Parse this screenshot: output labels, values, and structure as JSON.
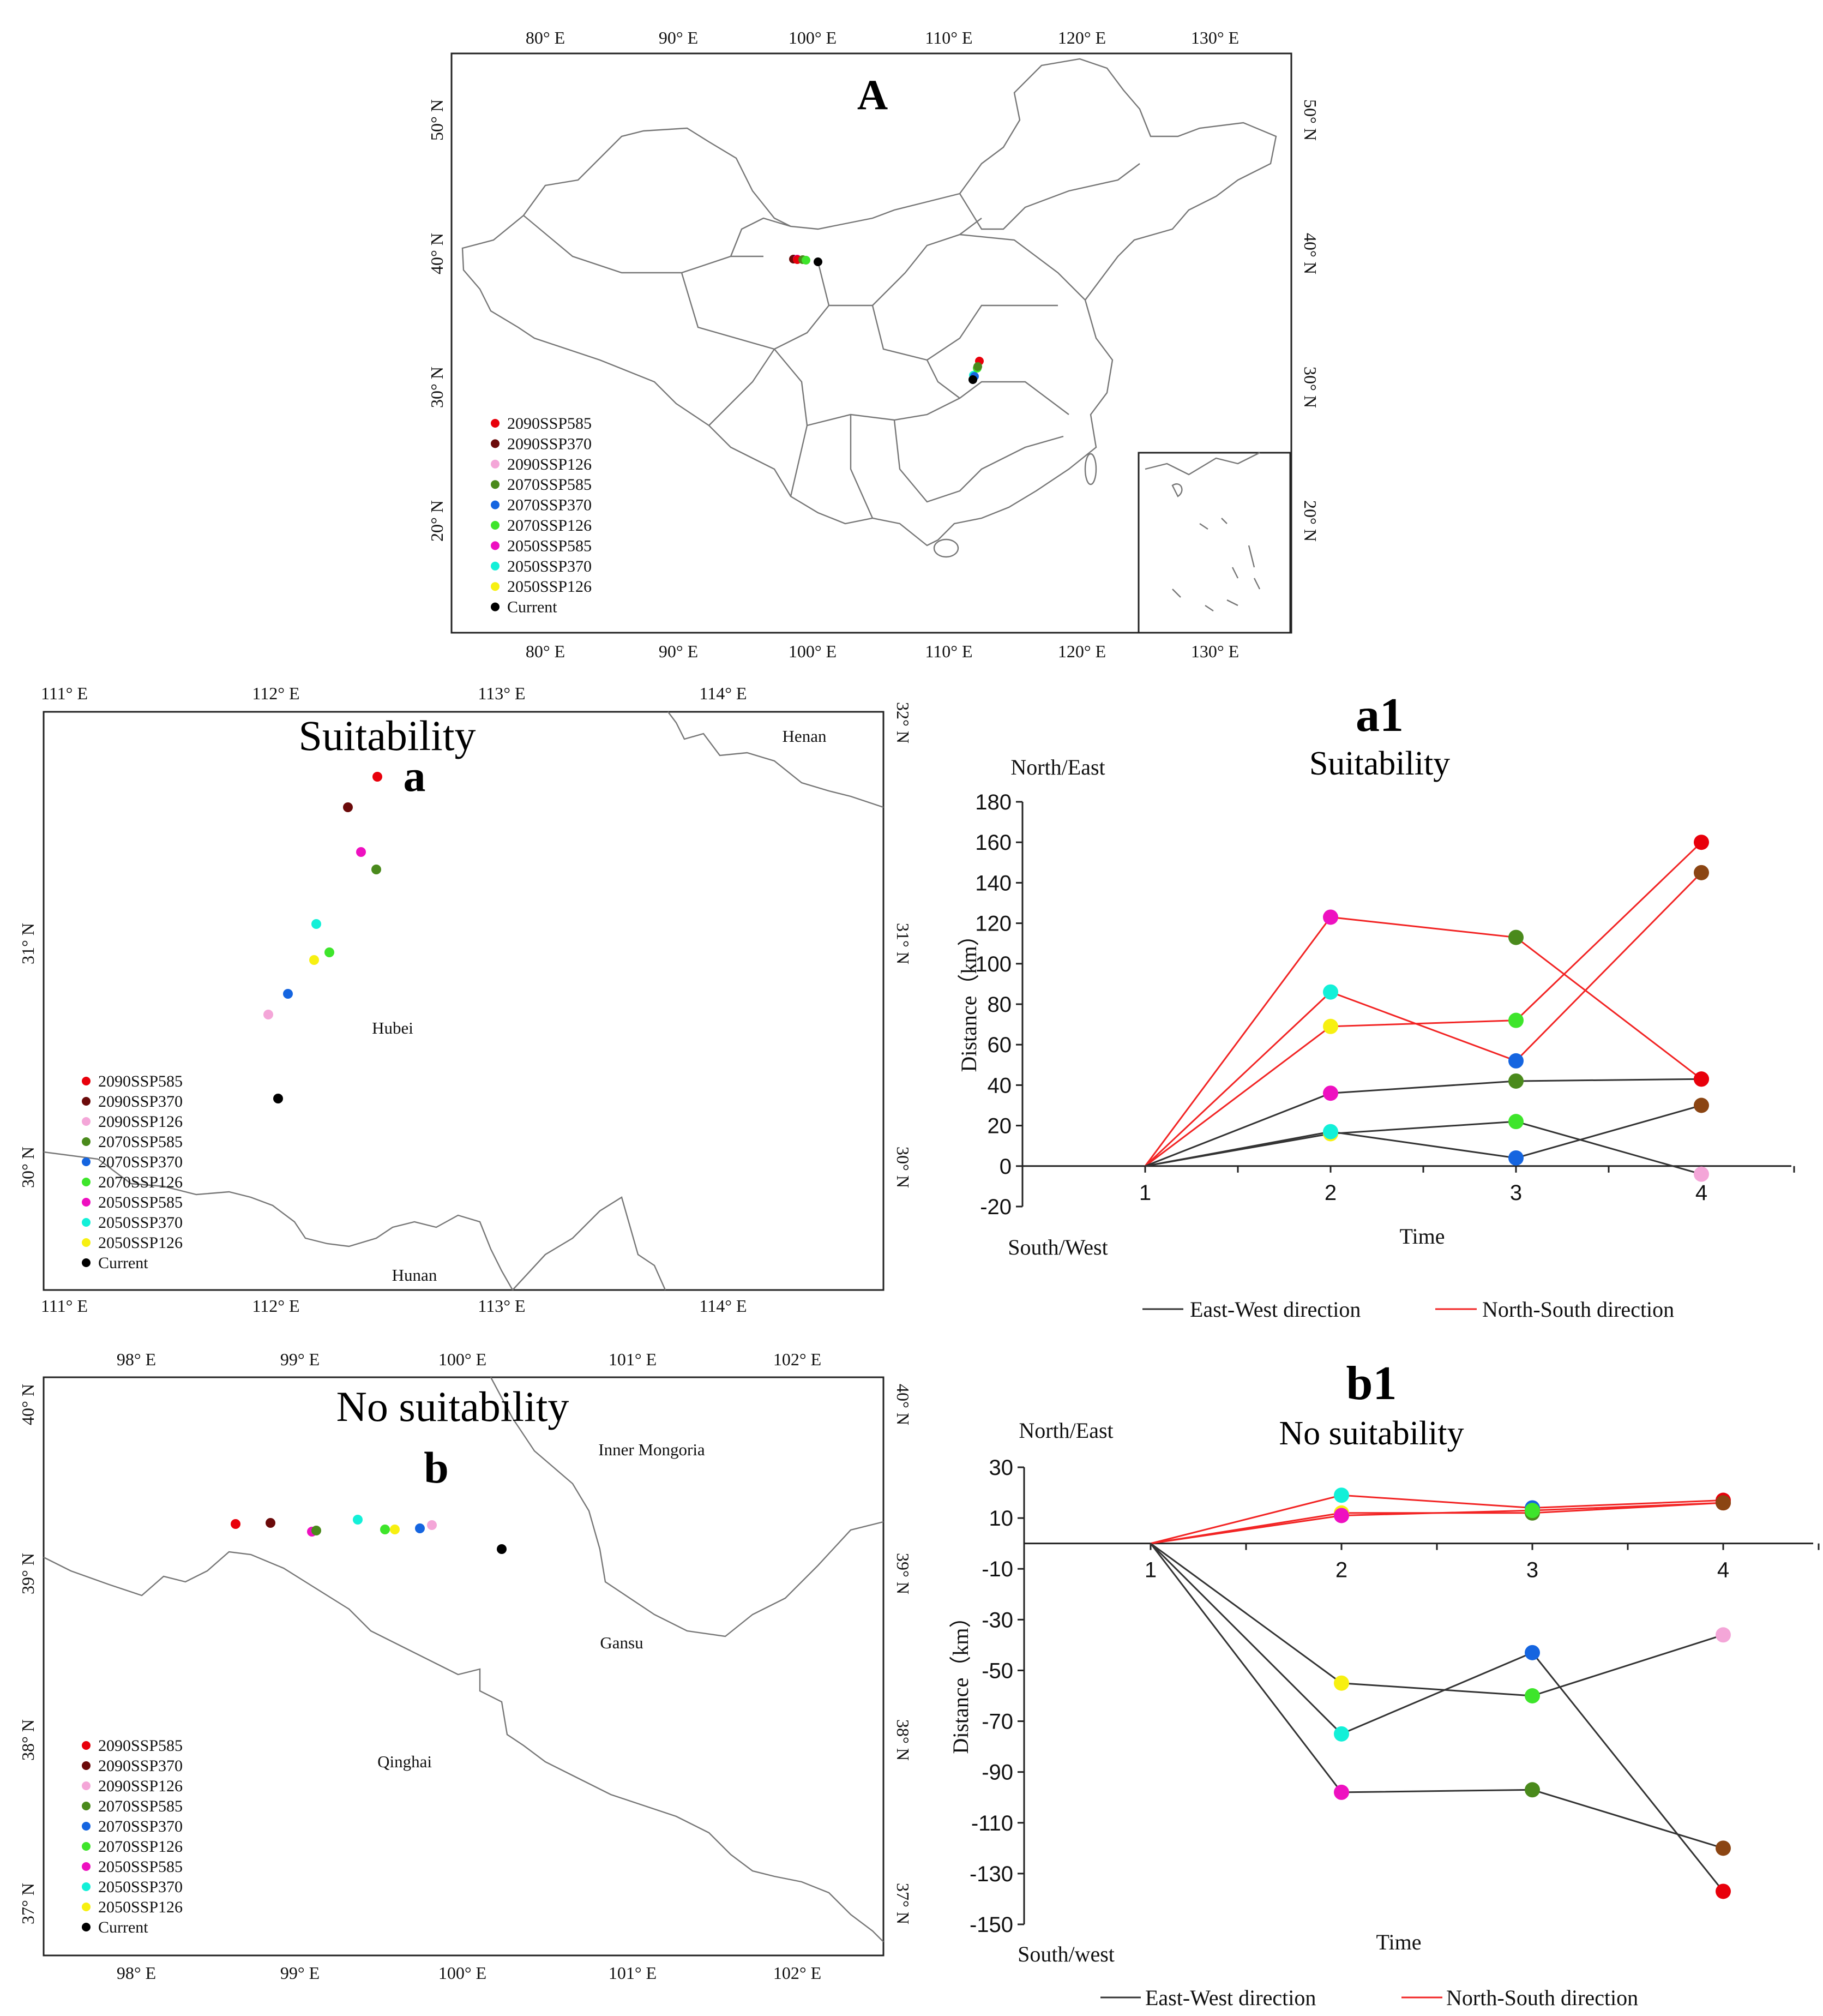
{
  "colors": {
    "2090SSP585": "#e8000b",
    "2090SSP370": "#6b0a0a",
    "2090SSP126": "#f4a6d8",
    "2070SSP585": "#4a8a1c",
    "2070SSP370": "#1565e0",
    "2070SSP126": "#3ee52b",
    "2050SSP585": "#ee10c0",
    "2050SSP370": "#13f0d8",
    "2050SSP126": "#f7f011",
    "Current": "#000000",
    "ew_line": "#333333",
    "ns_line": "#f22424",
    "brown_point": "#8b4513",
    "green_point": "#3a7a2c"
  },
  "legend": {
    "items": [
      "2090SSP585",
      "2090SSP370",
      "2090SSP126",
      "2070SSP585",
      "2070SSP370",
      "2070SSP126",
      "2050SSP585",
      "2050SSP370",
      "2050SSP126",
      "Current"
    ]
  },
  "mapA": {
    "label": "A",
    "lon_ticks": [
      "80° E",
      "90° E",
      "100° E",
      "110° E",
      "120° E",
      "130° E"
    ],
    "lat_ticks": [
      "20° N",
      "30° N",
      "40° N",
      "50° N"
    ]
  },
  "mapa": {
    "label": "a",
    "title": "Suitability",
    "lon_ticks": [
      "111° E",
      "112° E",
      "113° E",
      "114° E"
    ],
    "lat_ticks": [
      "30° N",
      "31° N",
      "32° N"
    ],
    "regions": [
      "Henan",
      "Hubei",
      "Hunan"
    ]
  },
  "mapb": {
    "label": "b",
    "title": "No suitability",
    "lon_ticks": [
      "98° E",
      "99° E",
      "100° E",
      "101° E",
      "102° E"
    ],
    "lat_ticks": [
      "37° N",
      "38° N",
      "39° N",
      "40° N"
    ],
    "regions": [
      "Inner Mongoria",
      "Gansu",
      "Qinghai"
    ]
  },
  "chart_data": [
    {
      "id": "a1",
      "type": "line",
      "panel_label": "a1",
      "title": "Suitability",
      "xlabel": "Time",
      "ylabel": "Distance（km）",
      "top_label": "North/East",
      "bottom_label": "South/West",
      "categories": [
        "1",
        "2",
        "3",
        "4"
      ],
      "ylim": [
        -20,
        180
      ],
      "yticks": [
        "-20",
        "0",
        "20",
        "40",
        "60",
        "80",
        "100",
        "120",
        "140",
        "160",
        "180"
      ],
      "legend": [
        "East-West direction",
        "North-South direction"
      ],
      "series": [
        {
          "direction": "North-South",
          "values": [
            0,
            123,
            113,
            43
          ],
          "points": [
            "",
            "2050SSP585",
            "2070SSP585",
            "2090SSP585"
          ]
        },
        {
          "direction": "North-South",
          "values": [
            0,
            69,
            72,
            160
          ],
          "points": [
            "",
            "2050SSP126",
            "2070SSP126",
            "2090SSP585"
          ]
        },
        {
          "direction": "North-South",
          "values": [
            0,
            86,
            52,
            145
          ],
          "points": [
            "",
            "2050SSP370",
            "2070SSP370",
            "brown"
          ]
        },
        {
          "direction": "East-West",
          "values": [
            0,
            36,
            42,
            43
          ],
          "points": [
            "",
            "2050SSP585",
            "2070SSP585",
            "2090SSP585"
          ]
        },
        {
          "direction": "East-West",
          "values": [
            0,
            16,
            22,
            -4
          ],
          "points": [
            "",
            "2050SSP126",
            "2070SSP126",
            "2090SSP126"
          ]
        },
        {
          "direction": "East-West",
          "values": [
            0,
            17,
            4,
            30
          ],
          "points": [
            "",
            "2050SSP370",
            "2070SSP370",
            "brown"
          ]
        }
      ]
    },
    {
      "id": "b1",
      "type": "line",
      "panel_label": "b1",
      "title": "No suitability",
      "xlabel": "Time",
      "ylabel": "Distance（km）",
      "top_label": "North/East",
      "bottom_label": "South/west",
      "categories": [
        "1",
        "2",
        "3",
        "4"
      ],
      "ylim": [
        -150,
        30
      ],
      "yticks": [
        "-150",
        "-130",
        "-110",
        "-90",
        "-70",
        "-50",
        "-30",
        "-10",
        "10",
        "30"
      ],
      "legend": [
        "East-West direction",
        "North-South direction"
      ],
      "series": [
        {
          "direction": "North-South",
          "values": [
            0,
            19,
            14,
            17
          ],
          "points": [
            "",
            "2050SSP370",
            "2070SSP370",
            "2090SSP585"
          ]
        },
        {
          "direction": "North-South",
          "values": [
            0,
            12,
            12,
            16
          ],
          "points": [
            "",
            "2050SSP126",
            "2070SSP585",
            "2090SSP585"
          ]
        },
        {
          "direction": "North-South",
          "values": [
            0,
            11,
            13,
            16
          ],
          "points": [
            "",
            "2050SSP585",
            "2070SSP126",
            "brown"
          ]
        },
        {
          "direction": "East-West",
          "values": [
            0,
            -55,
            -60,
            -36
          ],
          "points": [
            "",
            "2050SSP126",
            "2070SSP126",
            "2090SSP126"
          ]
        },
        {
          "direction": "East-West",
          "values": [
            0,
            -75,
            -43,
            -137
          ],
          "points": [
            "",
            "2050SSP370",
            "2070SSP370",
            "2090SSP585"
          ]
        },
        {
          "direction": "East-West",
          "values": [
            0,
            -98,
            -97,
            -120
          ],
          "points": [
            "",
            "2050SSP585",
            "2070SSP585",
            "brown"
          ]
        }
      ]
    }
  ]
}
